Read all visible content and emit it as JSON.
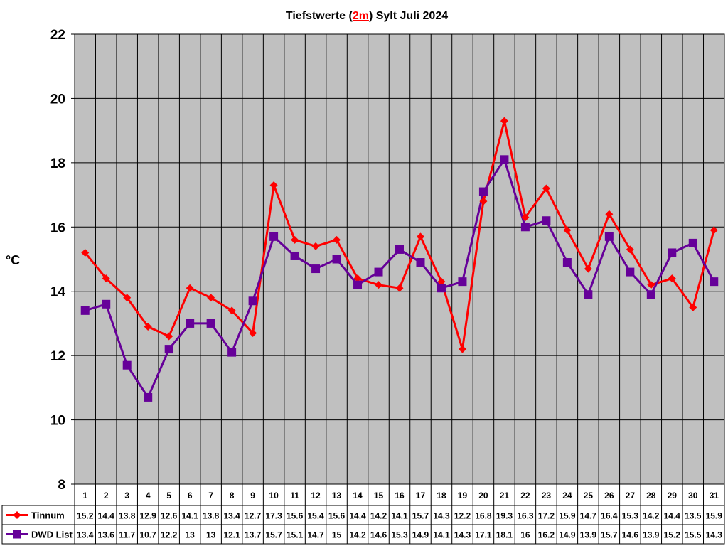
{
  "chart_data": {
    "type": "line",
    "title": {
      "prefix": "Tiefstwerte (",
      "highlight": "2m",
      "suffix": ") Sylt Juli 2024"
    },
    "ylabel": "°C",
    "ylim": [
      8,
      22
    ],
    "yticks": [
      "8",
      "10",
      "12",
      "14",
      "16",
      "18",
      "20",
      "22"
    ],
    "grid": true,
    "plot_background": "#c0c0c0",
    "categories": [
      "1",
      "2",
      "3",
      "4",
      "5",
      "6",
      "7",
      "8",
      "9",
      "10",
      "11",
      "12",
      "13",
      "14",
      "15",
      "16",
      "17",
      "18",
      "19",
      "20",
      "21",
      "22",
      "23",
      "24",
      "25",
      "26",
      "27",
      "28",
      "29",
      "30",
      "31"
    ],
    "series": [
      {
        "name": "Tinnum",
        "color": "#ff0000",
        "marker": "diamond",
        "values": [
          15.2,
          14.4,
          13.8,
          12.9,
          12.6,
          14.1,
          13.8,
          13.4,
          12.7,
          17.3,
          15.6,
          15.4,
          15.6,
          14.4,
          14.2,
          14.1,
          15.7,
          14.3,
          12.2,
          16.8,
          19.3,
          16.3,
          17.2,
          15.9,
          14.7,
          16.4,
          15.3,
          14.2,
          14.4,
          13.5,
          15.9
        ],
        "labels": [
          "15.2",
          "14.4",
          "13.8",
          "12.9",
          "12.6",
          "14.1",
          "13.8",
          "13.4",
          "12.7",
          "17.3",
          "15.6",
          "15.4",
          "15.6",
          "14.4",
          "14.2",
          "14.1",
          "15.7",
          "14.3",
          "12.2",
          "16.8",
          "19.3",
          "16.3",
          "17.2",
          "15.9",
          "14.7",
          "16.4",
          "15.3",
          "14.2",
          "14.4",
          "13.5",
          "15.9"
        ]
      },
      {
        "name": "DWD List",
        "color": "#660099",
        "marker": "square",
        "values": [
          13.4,
          13.6,
          11.7,
          10.7,
          12.2,
          13,
          13,
          12.1,
          13.7,
          15.7,
          15.1,
          14.7,
          15,
          14.2,
          14.6,
          15.3,
          14.9,
          14.1,
          14.3,
          17.1,
          18.1,
          16,
          16.2,
          14.9,
          13.9,
          15.7,
          14.6,
          13.9,
          15.2,
          15.5,
          14.3
        ],
        "labels": [
          "13.4",
          "13.6",
          "11.7",
          "10.7",
          "12.2",
          "13",
          "13",
          "12.1",
          "13.7",
          "15.7",
          "15.1",
          "14.7",
          "15",
          "14.2",
          "14.6",
          "15.3",
          "14.9",
          "14.1",
          "14.3",
          "17.1",
          "18.1",
          "16",
          "16.2",
          "14.9",
          "13.9",
          "15.7",
          "14.6",
          "13.9",
          "15.2",
          "15.5",
          "14.3"
        ]
      }
    ]
  }
}
